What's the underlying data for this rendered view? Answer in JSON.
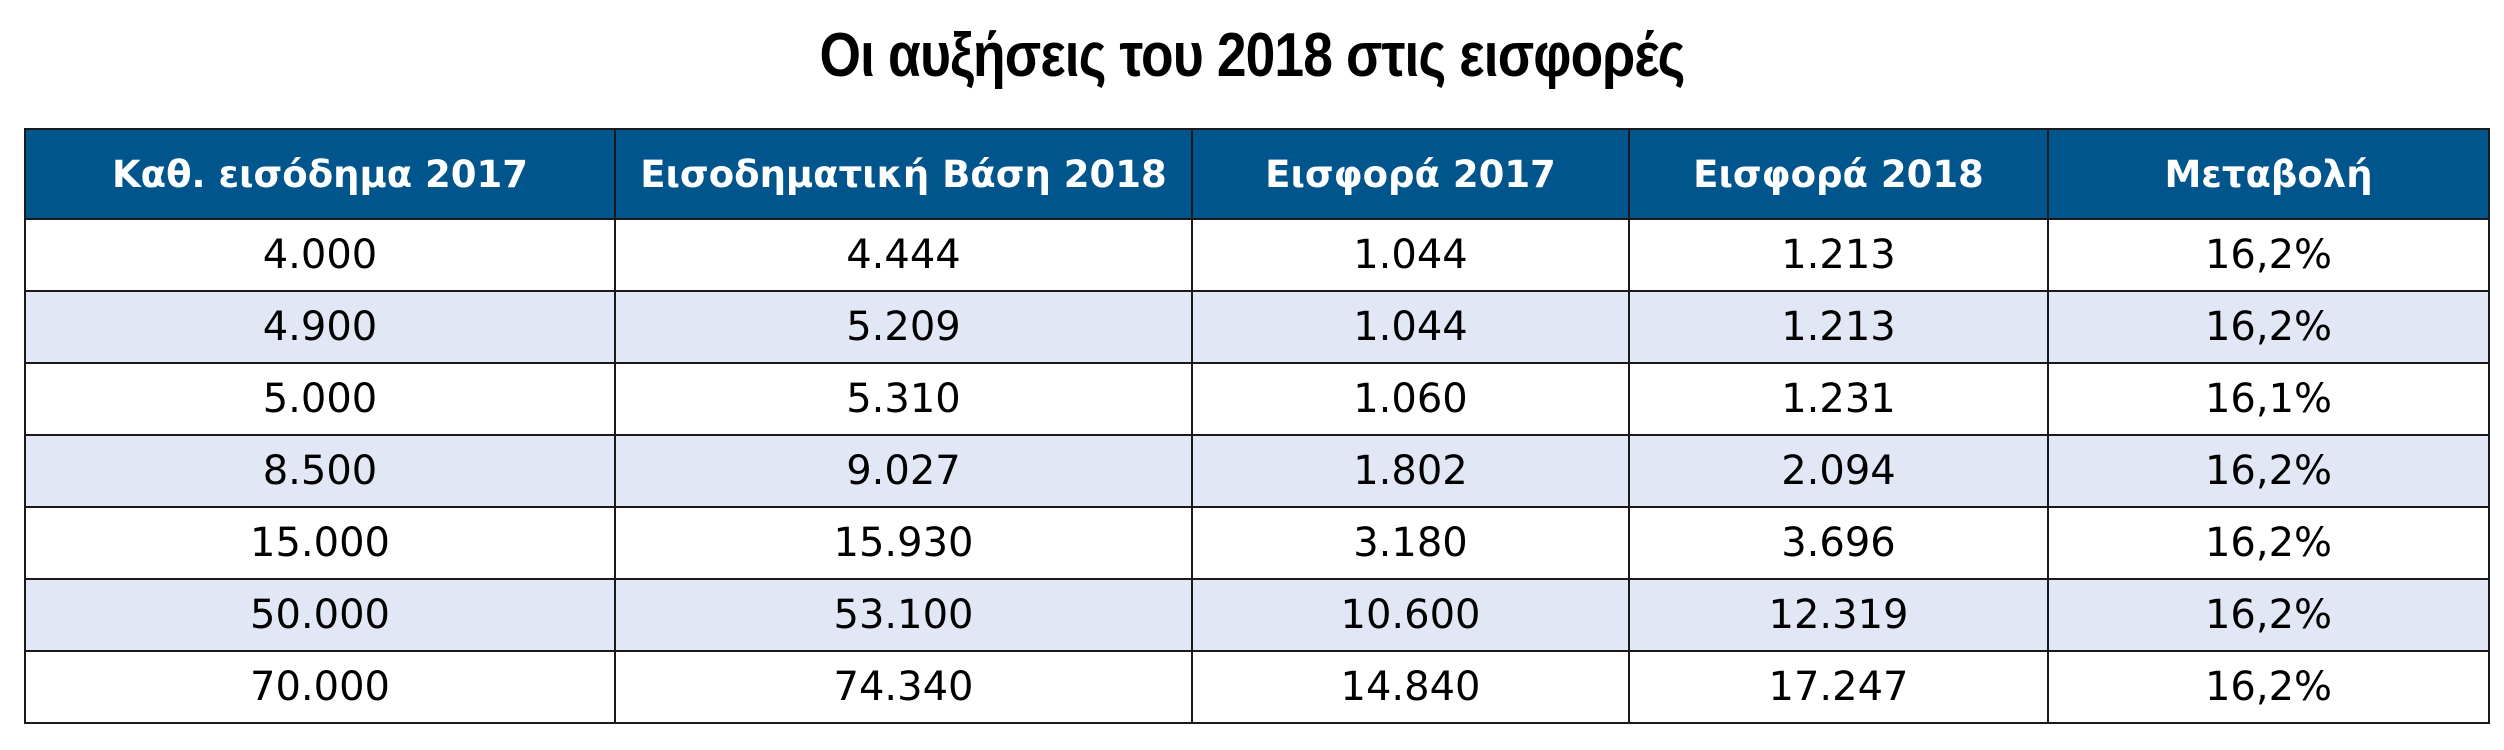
{
  "chart_data": {
    "type": "table",
    "title": "Οι αυξήσεις του 2018 στις εισφορές",
    "columns": [
      "Καθ. εισόδημα 2017",
      "Εισοδηματική Βάση 2018",
      "Εισφορά 2017",
      "Εισφορά 2018",
      "Μεταβολή"
    ],
    "rows": [
      [
        "4.000",
        "4.444",
        "1.044",
        "1.213",
        "16,2%"
      ],
      [
        "4.900",
        "5.209",
        "1.044",
        "1.213",
        "16,2%"
      ],
      [
        "5.000",
        "5.310",
        "1.060",
        "1.231",
        "16,1%"
      ],
      [
        "8.500",
        "9.027",
        "1.802",
        "2.094",
        "16,2%"
      ],
      [
        "15.000",
        "15.930",
        "3.180",
        "3.696",
        "16,2%"
      ],
      [
        "50.000",
        "53.100",
        "10.600",
        "12.319",
        "16,2%"
      ],
      [
        "70.000",
        "74.340",
        "14.840",
        "17.247",
        "16,2%"
      ]
    ],
    "colors": {
      "header_bg": "#00558c",
      "header_text": "#ffffff",
      "stripe_bg": "#e1e7f4",
      "row_bg": "#ffffff"
    }
  }
}
